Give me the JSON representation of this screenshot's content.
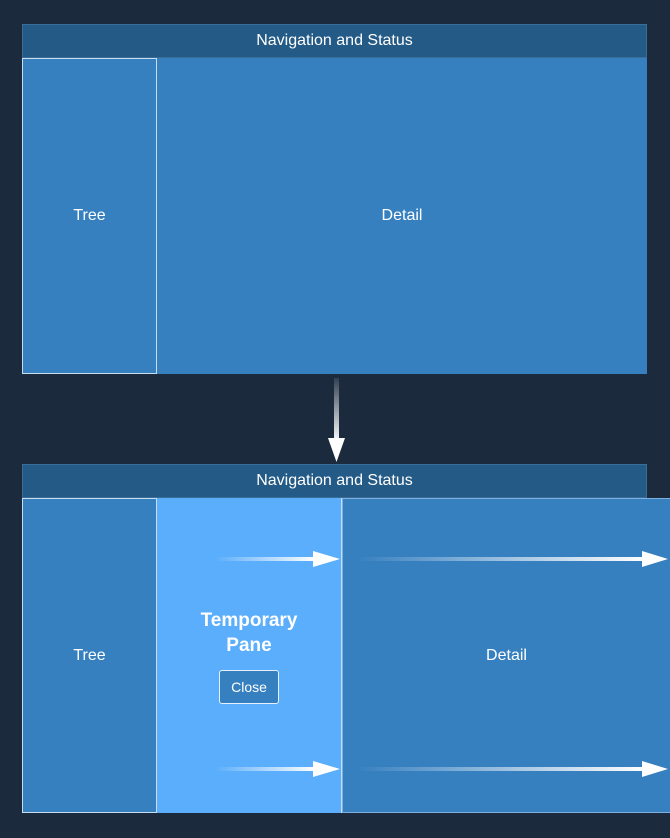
{
  "top": {
    "header": "Navigation and Status",
    "tree": "Tree",
    "detail": "Detail"
  },
  "bottom": {
    "header": "Navigation and Status",
    "tree": "Tree",
    "temp_pane_title": "Temporary Pane",
    "close_label": "Close",
    "detail": "Detail"
  },
  "colors": {
    "background": "#1b2a3d",
    "header": "#245a86",
    "pane": "#3780c0",
    "temporary_pane": "#5aaefc",
    "arrow": "#ffffff"
  }
}
